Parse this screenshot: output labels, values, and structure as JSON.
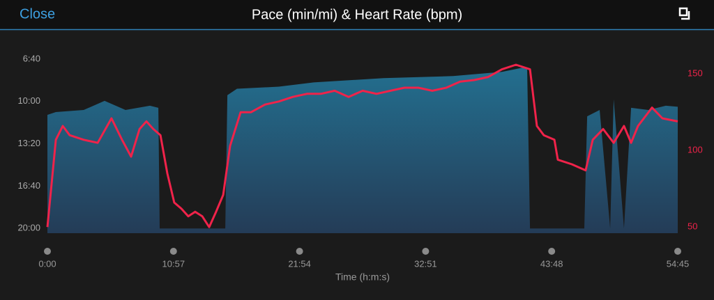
{
  "header": {
    "close": "Close",
    "title": "Pace (min/mi) & Heart Rate (bpm)"
  },
  "chart_data": {
    "type": "area-line",
    "x_label": "Time (h:m:s)",
    "xlim": [
      0,
      3285
    ],
    "xticks": [
      {
        "value": 0,
        "label": "0:00"
      },
      {
        "value": 657,
        "label": "10:57"
      },
      {
        "value": 1314,
        "label": "21:54"
      },
      {
        "value": 1971,
        "label": "32:51"
      },
      {
        "value": 2628,
        "label": "43:48"
      },
      {
        "value": 3285,
        "label": "54:45"
      }
    ],
    "ylim": [
      1222,
      318
    ],
    "yticks": [
      {
        "value": 400,
        "label": "6:40"
      },
      {
        "value": 600,
        "label": "10:00"
      },
      {
        "value": 800,
        "label": "13:20"
      },
      {
        "value": 1000,
        "label": "16:40"
      },
      {
        "value": 1200,
        "label": "20:00"
      }
    ],
    "y2lim": [
      46,
      171
    ],
    "y2ticks": [
      50,
      100,
      150
    ],
    "series": [
      {
        "name": "Pace",
        "color": "#2a7a9a",
        "x": [
          0,
          44,
          189,
          298,
          407,
          534,
          578,
          585,
          927,
          938,
          988,
          1206,
          1388,
          1752,
          2115,
          2369,
          2478,
          2500,
          2515,
          2798,
          2813,
          2878,
          2933,
          2951,
          3005,
          3042,
          3132,
          3223,
          3285
        ],
        "values": [
          663,
          650,
          640,
          597,
          640,
          620,
          630,
          1200,
          1200,
          570,
          540,
          530,
          510,
          490,
          480,
          460,
          440,
          440,
          1200,
          1200,
          670,
          640,
          1200,
          590,
          1200,
          630,
          640,
          620,
          625
        ]
      },
      {
        "name": "Heart Rate",
        "color": "#f0234a",
        "axis": "y2",
        "x": [
          0,
          44,
          80,
          116,
          189,
          262,
          334,
          389,
          436,
          480,
          516,
          552,
          589,
          625,
          661,
          698,
          734,
          770,
          807,
          843,
          879,
          916,
          952,
          1007,
          1061,
          1134,
          1206,
          1279,
          1352,
          1425,
          1497,
          1570,
          1643,
          1715,
          1788,
          1861,
          1933,
          2006,
          2079,
          2151,
          2224,
          2297,
          2369,
          2442,
          2515,
          2551,
          2587,
          2642,
          2660,
          2733,
          2805,
          2842,
          2896,
          2951,
          3005,
          3042,
          3078,
          3151,
          3205,
          3285
        ],
        "values": [
          50,
          107,
          116,
          110,
          107,
          105,
          121,
          107,
          96,
          114,
          119,
          114,
          110,
          85,
          66,
          62,
          57,
          60,
          57,
          50,
          60,
          71,
          103,
          125,
          125,
          130,
          132,
          135,
          137,
          137,
          139,
          135,
          139,
          137,
          139,
          141,
          141,
          139,
          141,
          145,
          146,
          148,
          153,
          156,
          153,
          116,
          110,
          107,
          94,
          91,
          87,
          107,
          114,
          105,
          116,
          105,
          116,
          128,
          121,
          119
        ]
      }
    ]
  }
}
